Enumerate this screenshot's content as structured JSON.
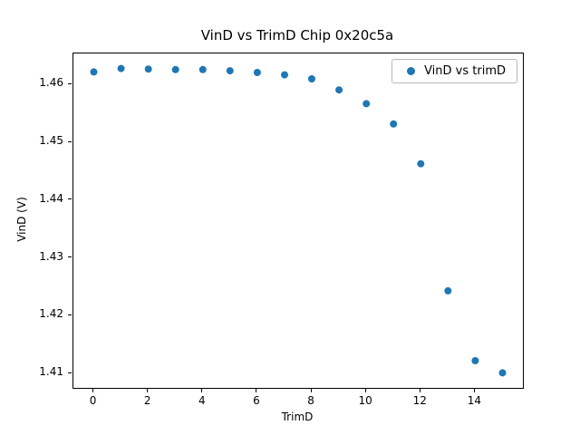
{
  "figure": {
    "title": "VinD vs TrimD Chip 0x20c5a",
    "xlabel": "TrimD",
    "ylabel": "VinD (V)"
  },
  "chart_data": {
    "type": "scatter",
    "title": "VinD vs TrimD Chip 0x20c5a",
    "xlabel": "TrimD",
    "ylabel": "VinD (V)",
    "legend": [
      "VinD vs trimD"
    ],
    "legend_position": "upper right",
    "marker_color": "#1f77b4",
    "grid": false,
    "x": [
      0,
      1,
      2,
      3,
      4,
      5,
      6,
      7,
      8,
      9,
      10,
      11,
      12,
      13,
      14,
      15
    ],
    "y": [
      1.4622,
      1.4628,
      1.4627,
      1.4626,
      1.4626,
      1.4624,
      1.4621,
      1.4617,
      1.461,
      1.4591,
      1.4567,
      1.4532,
      1.4463,
      1.4243,
      1.4122,
      1.4101
    ],
    "xlim": [
      -0.75,
      15.75
    ],
    "ylim": [
      1.4075,
      1.4654
    ],
    "xticks": [
      0,
      2,
      4,
      6,
      8,
      10,
      12,
      14
    ],
    "yticks": [
      1.41,
      1.42,
      1.43,
      1.44,
      1.45,
      1.46
    ]
  }
}
